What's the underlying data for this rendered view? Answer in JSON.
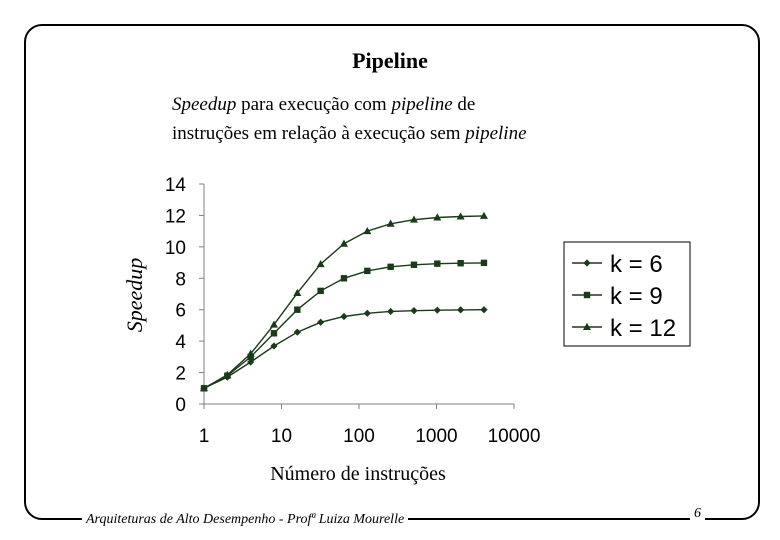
{
  "slide": {
    "title": "Pipeline",
    "subtitle_parts": {
      "w1": "Speedup",
      "t1": " para execução com ",
      "w2": "pipeline",
      "t2": " de",
      "t3": "instruções em relação à execução sem ",
      "w3": "pipeline"
    },
    "footer": "Arquiteturas de Alto Desempenho - Profª Luiza Mourelle",
    "page_number": "6"
  },
  "chart_data": {
    "type": "line",
    "xlabel": "Número de instruções",
    "ylabel": "Speedup",
    "x_scale": "log",
    "xlim": [
      1,
      10000
    ],
    "ylim": [
      0,
      14
    ],
    "x_ticks": [
      "1",
      "10",
      "100",
      "1000",
      "10000"
    ],
    "y_ticks": [
      "0",
      "2",
      "4",
      "6",
      "8",
      "10",
      "12",
      "14"
    ],
    "grid": false,
    "legend_position": "right",
    "x": [
      1,
      2,
      4,
      8,
      16,
      32,
      64,
      128,
      256,
      512,
      1024,
      2048,
      4096
    ],
    "series": [
      {
        "name": "k = 6",
        "marker": "diamond",
        "values": [
          1.0,
          1.71,
          2.67,
          3.69,
          4.57,
          5.2,
          5.57,
          5.77,
          5.89,
          5.94,
          5.97,
          5.99,
          6.0
        ]
      },
      {
        "name": "k = 9",
        "marker": "square",
        "values": [
          1.0,
          1.8,
          3.0,
          4.5,
          6.0,
          7.2,
          8.0,
          8.47,
          8.73,
          8.86,
          8.93,
          8.96,
          8.98
        ]
      },
      {
        "name": "k = 12",
        "marker": "triangle",
        "values": [
          1.0,
          1.85,
          3.2,
          5.05,
          7.06,
          8.9,
          10.2,
          11.0,
          11.47,
          11.73,
          11.87,
          11.93,
          11.97
        ]
      }
    ],
    "line_color": "#1a3a1a"
  }
}
